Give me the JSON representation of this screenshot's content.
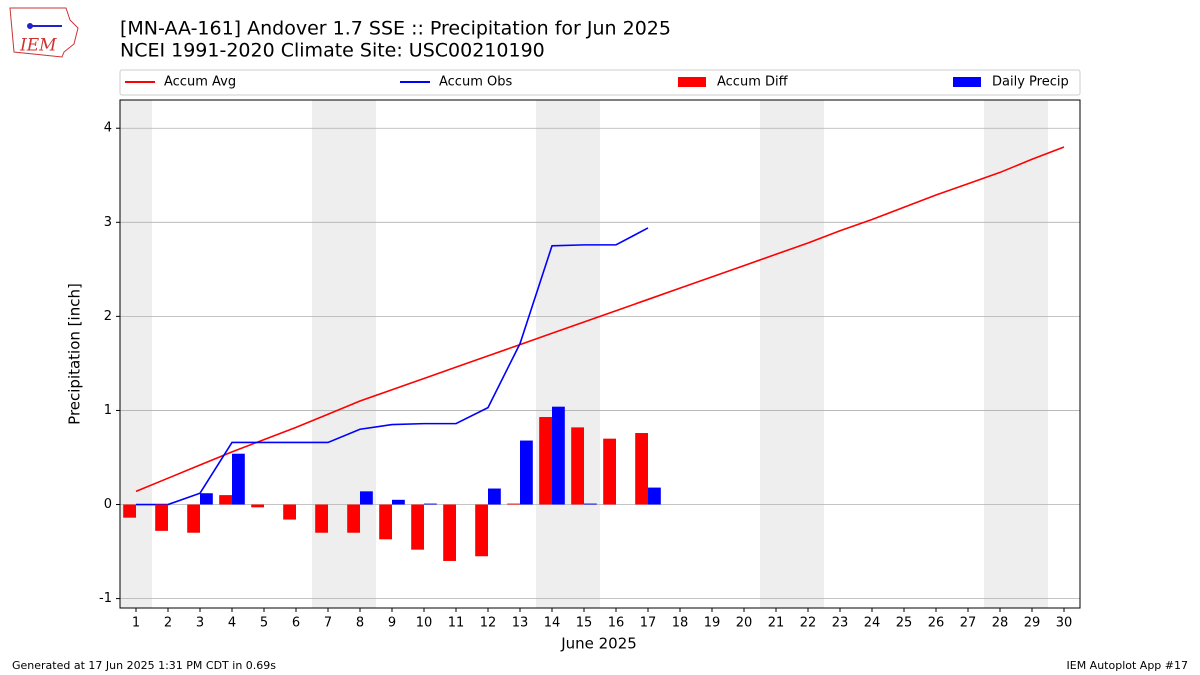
{
  "chart_data": {
    "type": "bar",
    "title": "[MN-AA-161] Andover 1.7 SSE :: Precipitation for Jun 2025",
    "subtitle": "NCEI 1991-2020 Climate Site: USC00210190",
    "logo_text": "IEM",
    "xlabel": "June 2025",
    "ylabel": "Precipitation [inch]",
    "footer_left": "Generated at 17 Jun 2025 1:31 PM CDT in 0.69s",
    "footer_right": "IEM Autoplot App #17",
    "x": [
      1,
      2,
      3,
      4,
      5,
      6,
      7,
      8,
      9,
      10,
      11,
      12,
      13,
      14,
      15,
      16,
      17,
      18,
      19,
      20,
      21,
      22,
      23,
      24,
      25,
      26,
      27,
      28,
      29,
      30
    ],
    "xlim": [
      0.5,
      30.5
    ],
    "xticks": [
      1,
      2,
      3,
      4,
      5,
      6,
      7,
      8,
      9,
      10,
      11,
      12,
      13,
      14,
      15,
      16,
      17,
      18,
      19,
      20,
      21,
      22,
      23,
      24,
      25,
      26,
      27,
      28,
      29,
      30
    ],
    "ylim": [
      -1.1,
      4.3
    ],
    "yticks": [
      -1,
      0,
      1,
      2,
      3,
      4
    ],
    "grid": true,
    "series": [
      {
        "name": "Accum Avg",
        "kind": "line",
        "color": "#ff0000",
        "values": [
          0.14,
          0.28,
          0.42,
          0.56,
          0.69,
          0.82,
          0.96,
          1.1,
          1.22,
          1.34,
          1.46,
          1.58,
          1.7,
          1.82,
          1.94,
          2.06,
          2.18,
          2.3,
          2.42,
          2.54,
          2.66,
          2.78,
          2.91,
          3.03,
          3.16,
          3.29,
          3.41,
          3.53,
          3.67,
          3.8
        ]
      },
      {
        "name": "Accum Obs",
        "kind": "line",
        "color": "#0000ff",
        "values": [
          0,
          0,
          0.12,
          0.66,
          0.66,
          0.66,
          0.66,
          0.8,
          0.85,
          0.86,
          0.86,
          1.03,
          1.71,
          2.75,
          2.76,
          2.76,
          2.94,
          null,
          null,
          null,
          null,
          null,
          null,
          null,
          null,
          null,
          null,
          null,
          null,
          null
        ]
      },
      {
        "name": "Accum Diff",
        "kind": "bar",
        "color": "#ff0000",
        "values": [
          -0.14,
          -0.28,
          -0.3,
          0.1,
          -0.03,
          -0.16,
          -0.3,
          -0.3,
          -0.37,
          -0.48,
          -0.6,
          -0.55,
          0.01,
          0.93,
          0.82,
          0.7,
          0.76,
          null,
          null,
          null,
          null,
          null,
          null,
          null,
          null,
          null,
          null,
          null,
          null,
          null
        ]
      },
      {
        "name": "Daily Precip",
        "kind": "bar",
        "color": "#0000ff",
        "values": [
          0,
          0,
          0.12,
          0.54,
          0,
          0,
          0,
          0.14,
          0.05,
          0.01,
          0,
          0.17,
          0.68,
          1.04,
          0.01,
          0,
          0.18,
          null,
          null,
          null,
          null,
          null,
          null,
          null,
          null,
          null,
          null,
          null,
          null,
          null
        ]
      }
    ]
  }
}
